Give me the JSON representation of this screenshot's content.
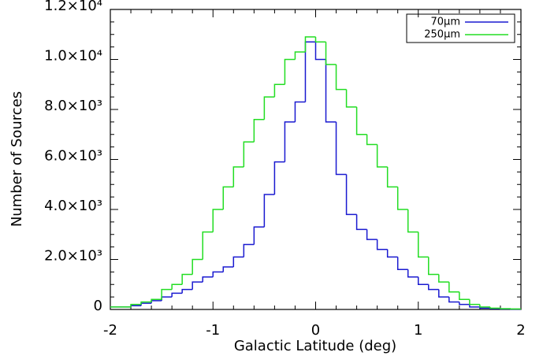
{
  "chart_data": {
    "type": "histogram",
    "xlabel": "Galactic Latitude (deg)",
    "ylabel": "Number of Sources",
    "bins": [
      -2.0,
      -1.9,
      -1.8,
      -1.7,
      -1.6,
      -1.5,
      -1.4,
      -1.3,
      -1.2,
      -1.1,
      -1.0,
      -0.9,
      -0.8,
      -0.7,
      -0.6,
      -0.5,
      -0.4,
      -0.3,
      -0.2,
      -0.1,
      0.0,
      0.1,
      0.2,
      0.3,
      0.4,
      0.5,
      0.6,
      0.7,
      0.8,
      0.9,
      1.0,
      1.1,
      1.2,
      1.3,
      1.4,
      1.5,
      1.6,
      1.7,
      1.8,
      1.9,
      2.0
    ],
    "series": [
      {
        "name": "70μm",
        "color": "#1a1ad0",
        "values": [
          100,
          100,
          150,
          250,
          350,
          500,
          650,
          800,
          1100,
          1300,
          1500,
          1700,
          2100,
          2600,
          3300,
          4600,
          5900,
          7500,
          8300,
          10700,
          10000,
          7500,
          5400,
          3800,
          3200,
          2800,
          2400,
          2100,
          1600,
          1300,
          1000,
          800,
          500,
          300,
          200,
          100,
          50,
          30,
          20,
          10
        ]
      },
      {
        "name": "250μm",
        "color": "#22dd22",
        "values": [
          100,
          100,
          200,
          300,
          400,
          800,
          1000,
          1400,
          2000,
          3100,
          4000,
          4900,
          5700,
          6700,
          7600,
          8500,
          9000,
          10000,
          10300,
          10900,
          10700,
          9800,
          8800,
          8100,
          7000,
          6600,
          5700,
          4900,
          4000,
          3100,
          2100,
          1400,
          1100,
          700,
          400,
          200,
          100,
          50,
          30,
          20
        ]
      }
    ],
    "xlim": [
      -2,
      2
    ],
    "xticks": [
      -2,
      -1,
      0,
      1,
      2
    ],
    "ylim": [
      0,
      12000
    ],
    "yticks": [
      0,
      {
        "value": 2000,
        "label": "2.0×10³"
      },
      {
        "value": 4000,
        "label": "4.0×10³"
      },
      {
        "value": 6000,
        "label": "6.0×10³"
      },
      {
        "value": 8000,
        "label": "8.0×10³"
      },
      {
        "value": 10000,
        "label": "1.0×10⁴"
      },
      {
        "value": 12000,
        "label": "1.2×10⁴"
      }
    ],
    "legend": "upper right"
  }
}
